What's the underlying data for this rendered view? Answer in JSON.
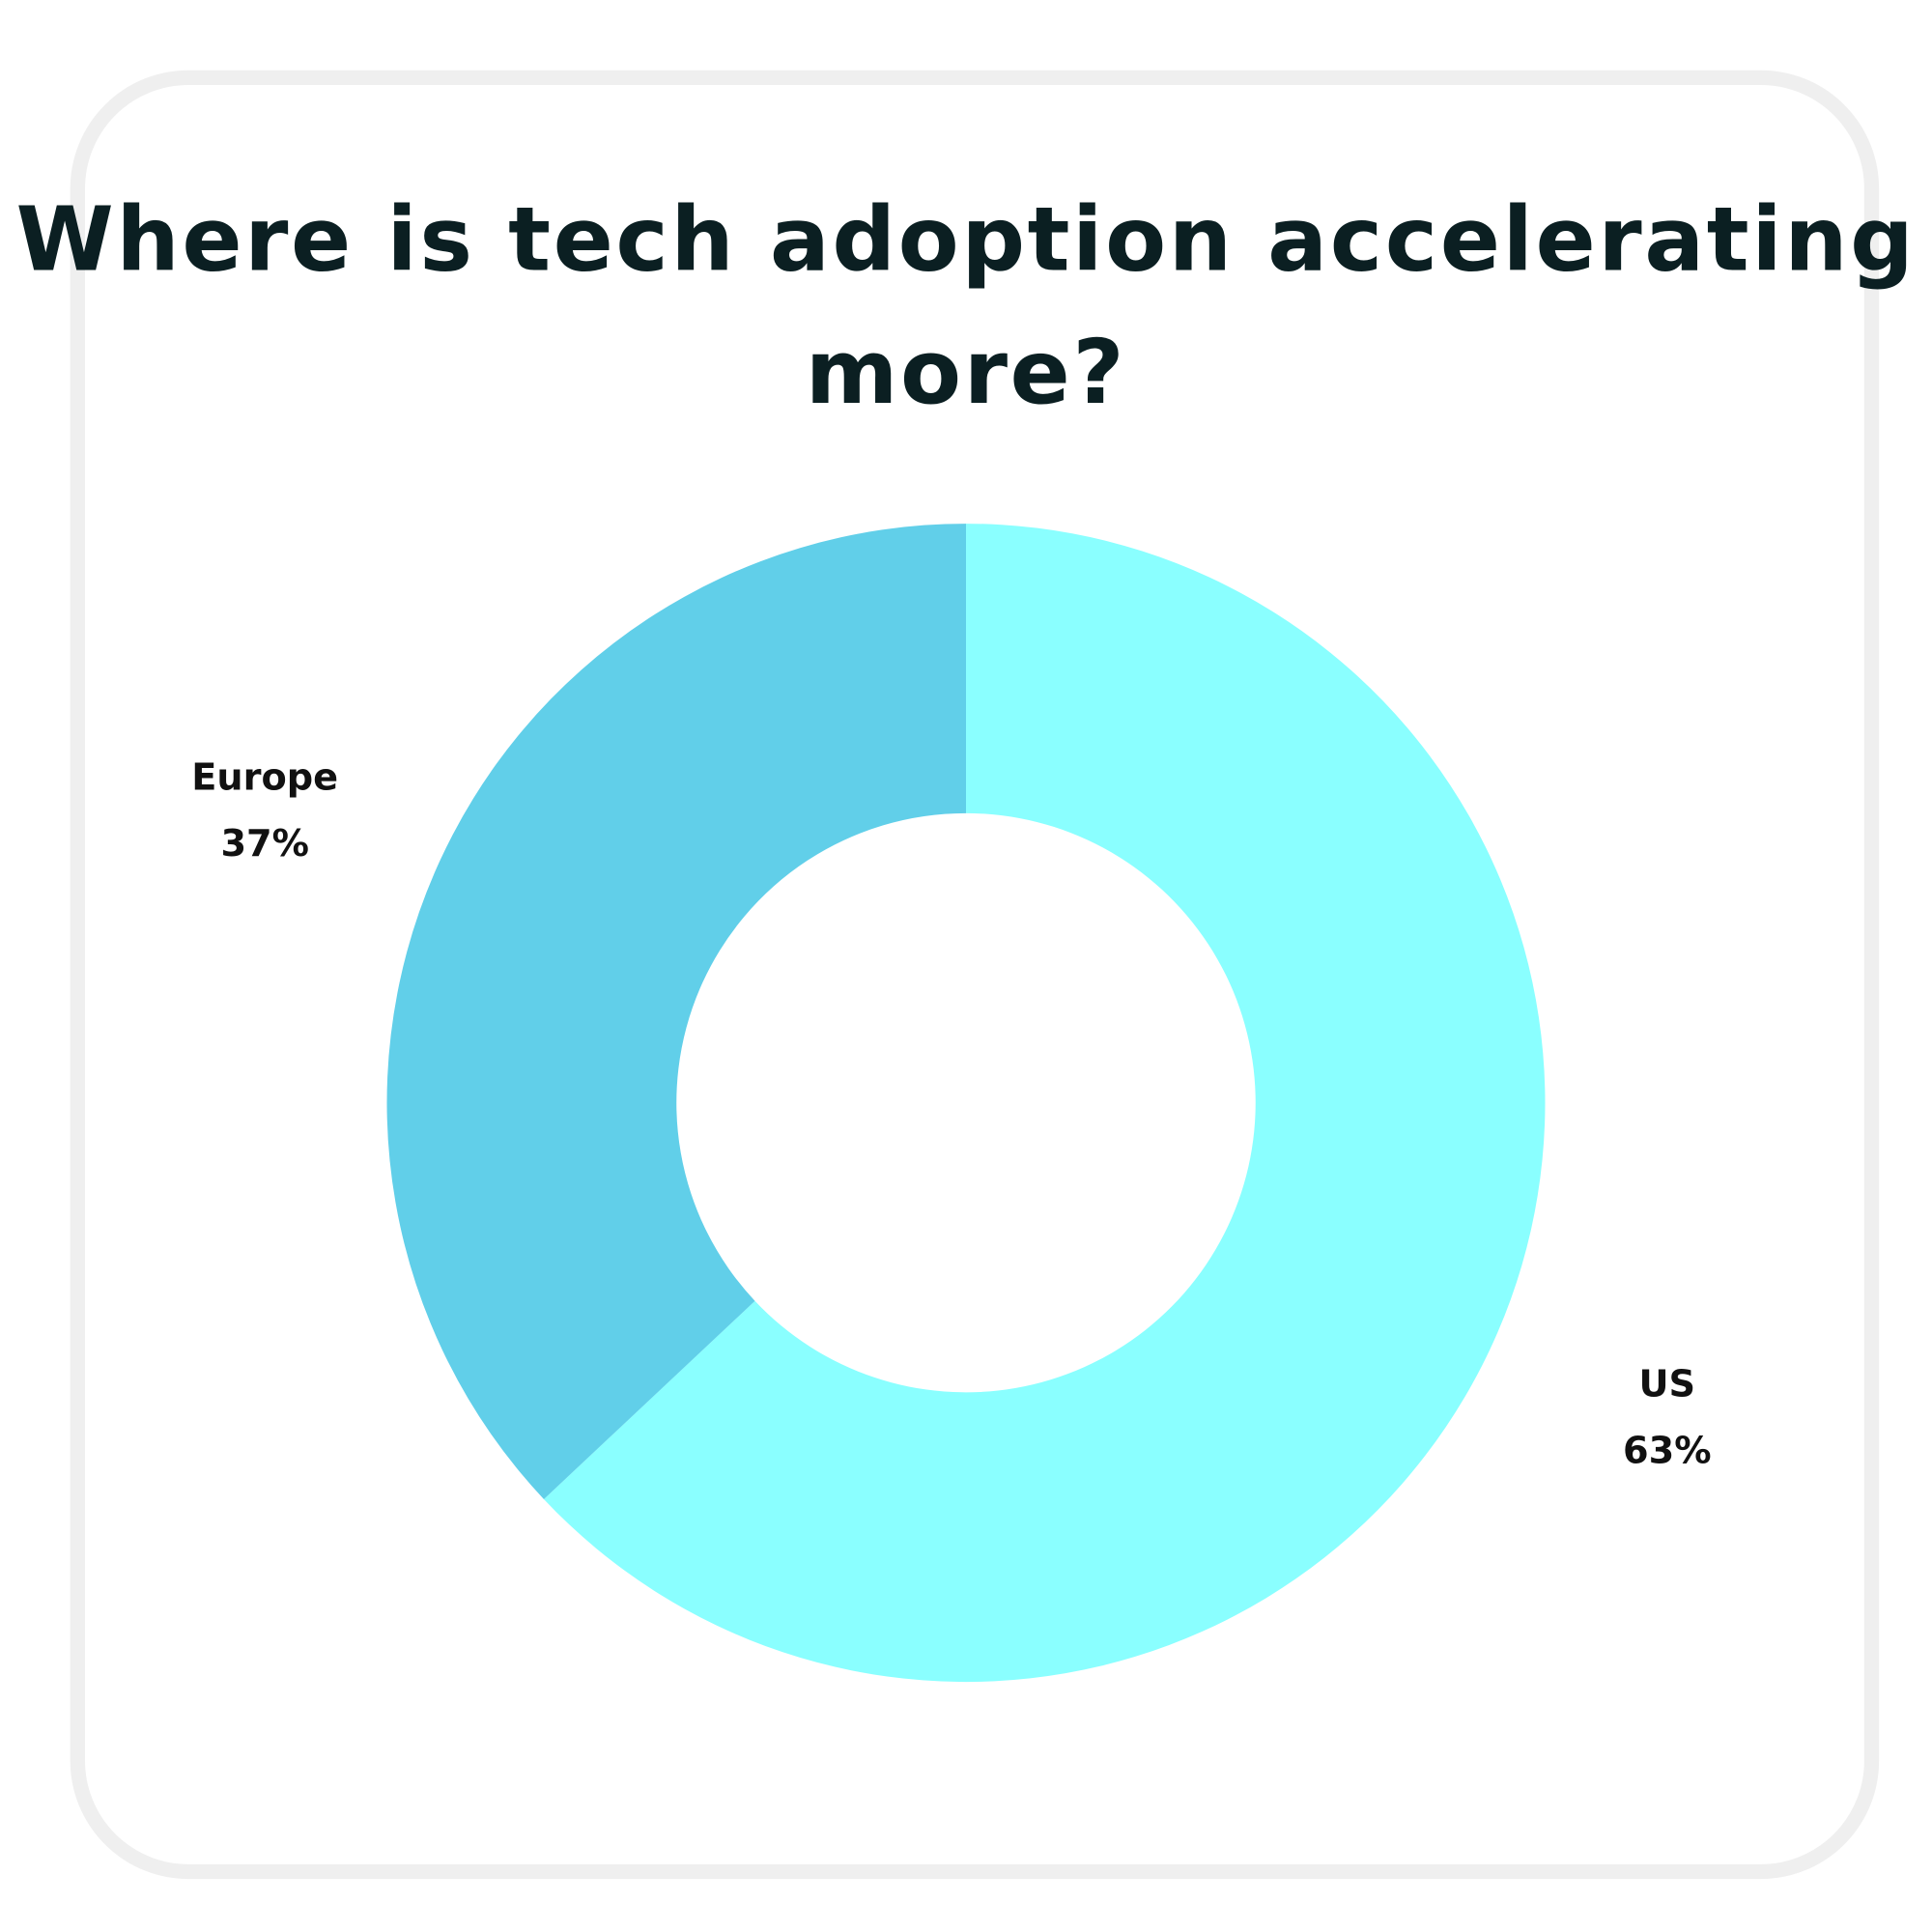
{
  "chart_data": {
    "type": "pie",
    "title": "Where is tech adoption accelerating more?",
    "donut": true,
    "slices": [
      {
        "label": "US",
        "value": 63,
        "value_label": "63%",
        "color": "#8affff"
      },
      {
        "label": "Europe",
        "value": 37,
        "value_label": "37%",
        "color": "#61cfe9"
      }
    ],
    "start": "top",
    "direction": "clockwise"
  }
}
